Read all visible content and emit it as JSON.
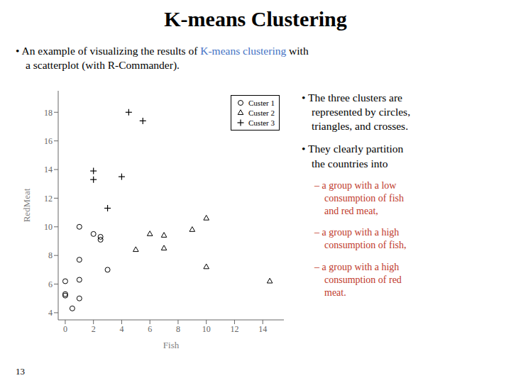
{
  "chart_data": {
    "type": "scatter",
    "title": "K-means Clustering",
    "xlabel": "Fish",
    "ylabel": "RedMeat",
    "xlim": [
      -0.5,
      15.5
    ],
    "ylim": [
      3.5,
      19.5
    ],
    "xticks": [
      0,
      2,
      4,
      6,
      8,
      10,
      12,
      14
    ],
    "yticks": [
      4,
      6,
      8,
      10,
      12,
      14,
      16,
      18
    ],
    "legend": "upper right",
    "series": [
      {
        "name": "Custer 1",
        "color": "#000000",
        "marker": "circle",
        "x": [
          0,
          0.5,
          1,
          2,
          2.5,
          2.5,
          3,
          1,
          1,
          0,
          0,
          1
        ],
        "values": [
          5.2,
          4.3,
          7.7,
          9.5,
          9.3,
          9.1,
          7.0,
          6.3,
          10.0,
          5.3,
          6.2,
          5.0
        ]
      },
      {
        "name": "Custer 2",
        "color": "#000000",
        "marker": "triangle",
        "x": [
          5,
          6,
          7,
          7,
          9,
          10,
          10,
          14.5
        ],
        "values": [
          8.4,
          9.5,
          9.4,
          8.5,
          9.8,
          10.6,
          7.2,
          6.2
        ]
      },
      {
        "name": "Custer 3",
        "color": "#000000",
        "marker": "cross",
        "x": [
          2,
          2,
          3,
          4,
          4.5,
          5.5
        ],
        "values": [
          13.9,
          13.3,
          11.3,
          13.5,
          18.0,
          17.4
        ]
      }
    ],
    "annotations": [
      [
        {
          "text": "• An example of visualizing the results of ",
          "color": "#000000"
        },
        {
          "text": "K-means clustering",
          "color": "#4472C4"
        },
        {
          "text": " with a scatterplot (with R-Commander).",
          "color": "#000000"
        }
      ],
      [
        {
          "text": "• The three clusters are\nrepresented by circles,\ntriangles, and crosses.",
          "color": "#000000"
        }
      ],
      [
        {
          "text": "• They clearly partition\nthe countries into",
          "color": "#000000"
        }
      ],
      [
        {
          "text": "– a group with a low\nconsumption of fish\nand red meat,",
          "color": "#C0392B"
        }
      ],
      [
        {
          "text": "– a group with a high\nconsumption of fish,",
          "color": "#C0392B"
        }
      ],
      [
        {
          "text": "– a group with a high\nconsumption of red\nmeat.",
          "color": "#C0392B"
        }
      ],
      [
        {
          "text": "13",
          "color": "#000000"
        }
      ]
    ]
  }
}
